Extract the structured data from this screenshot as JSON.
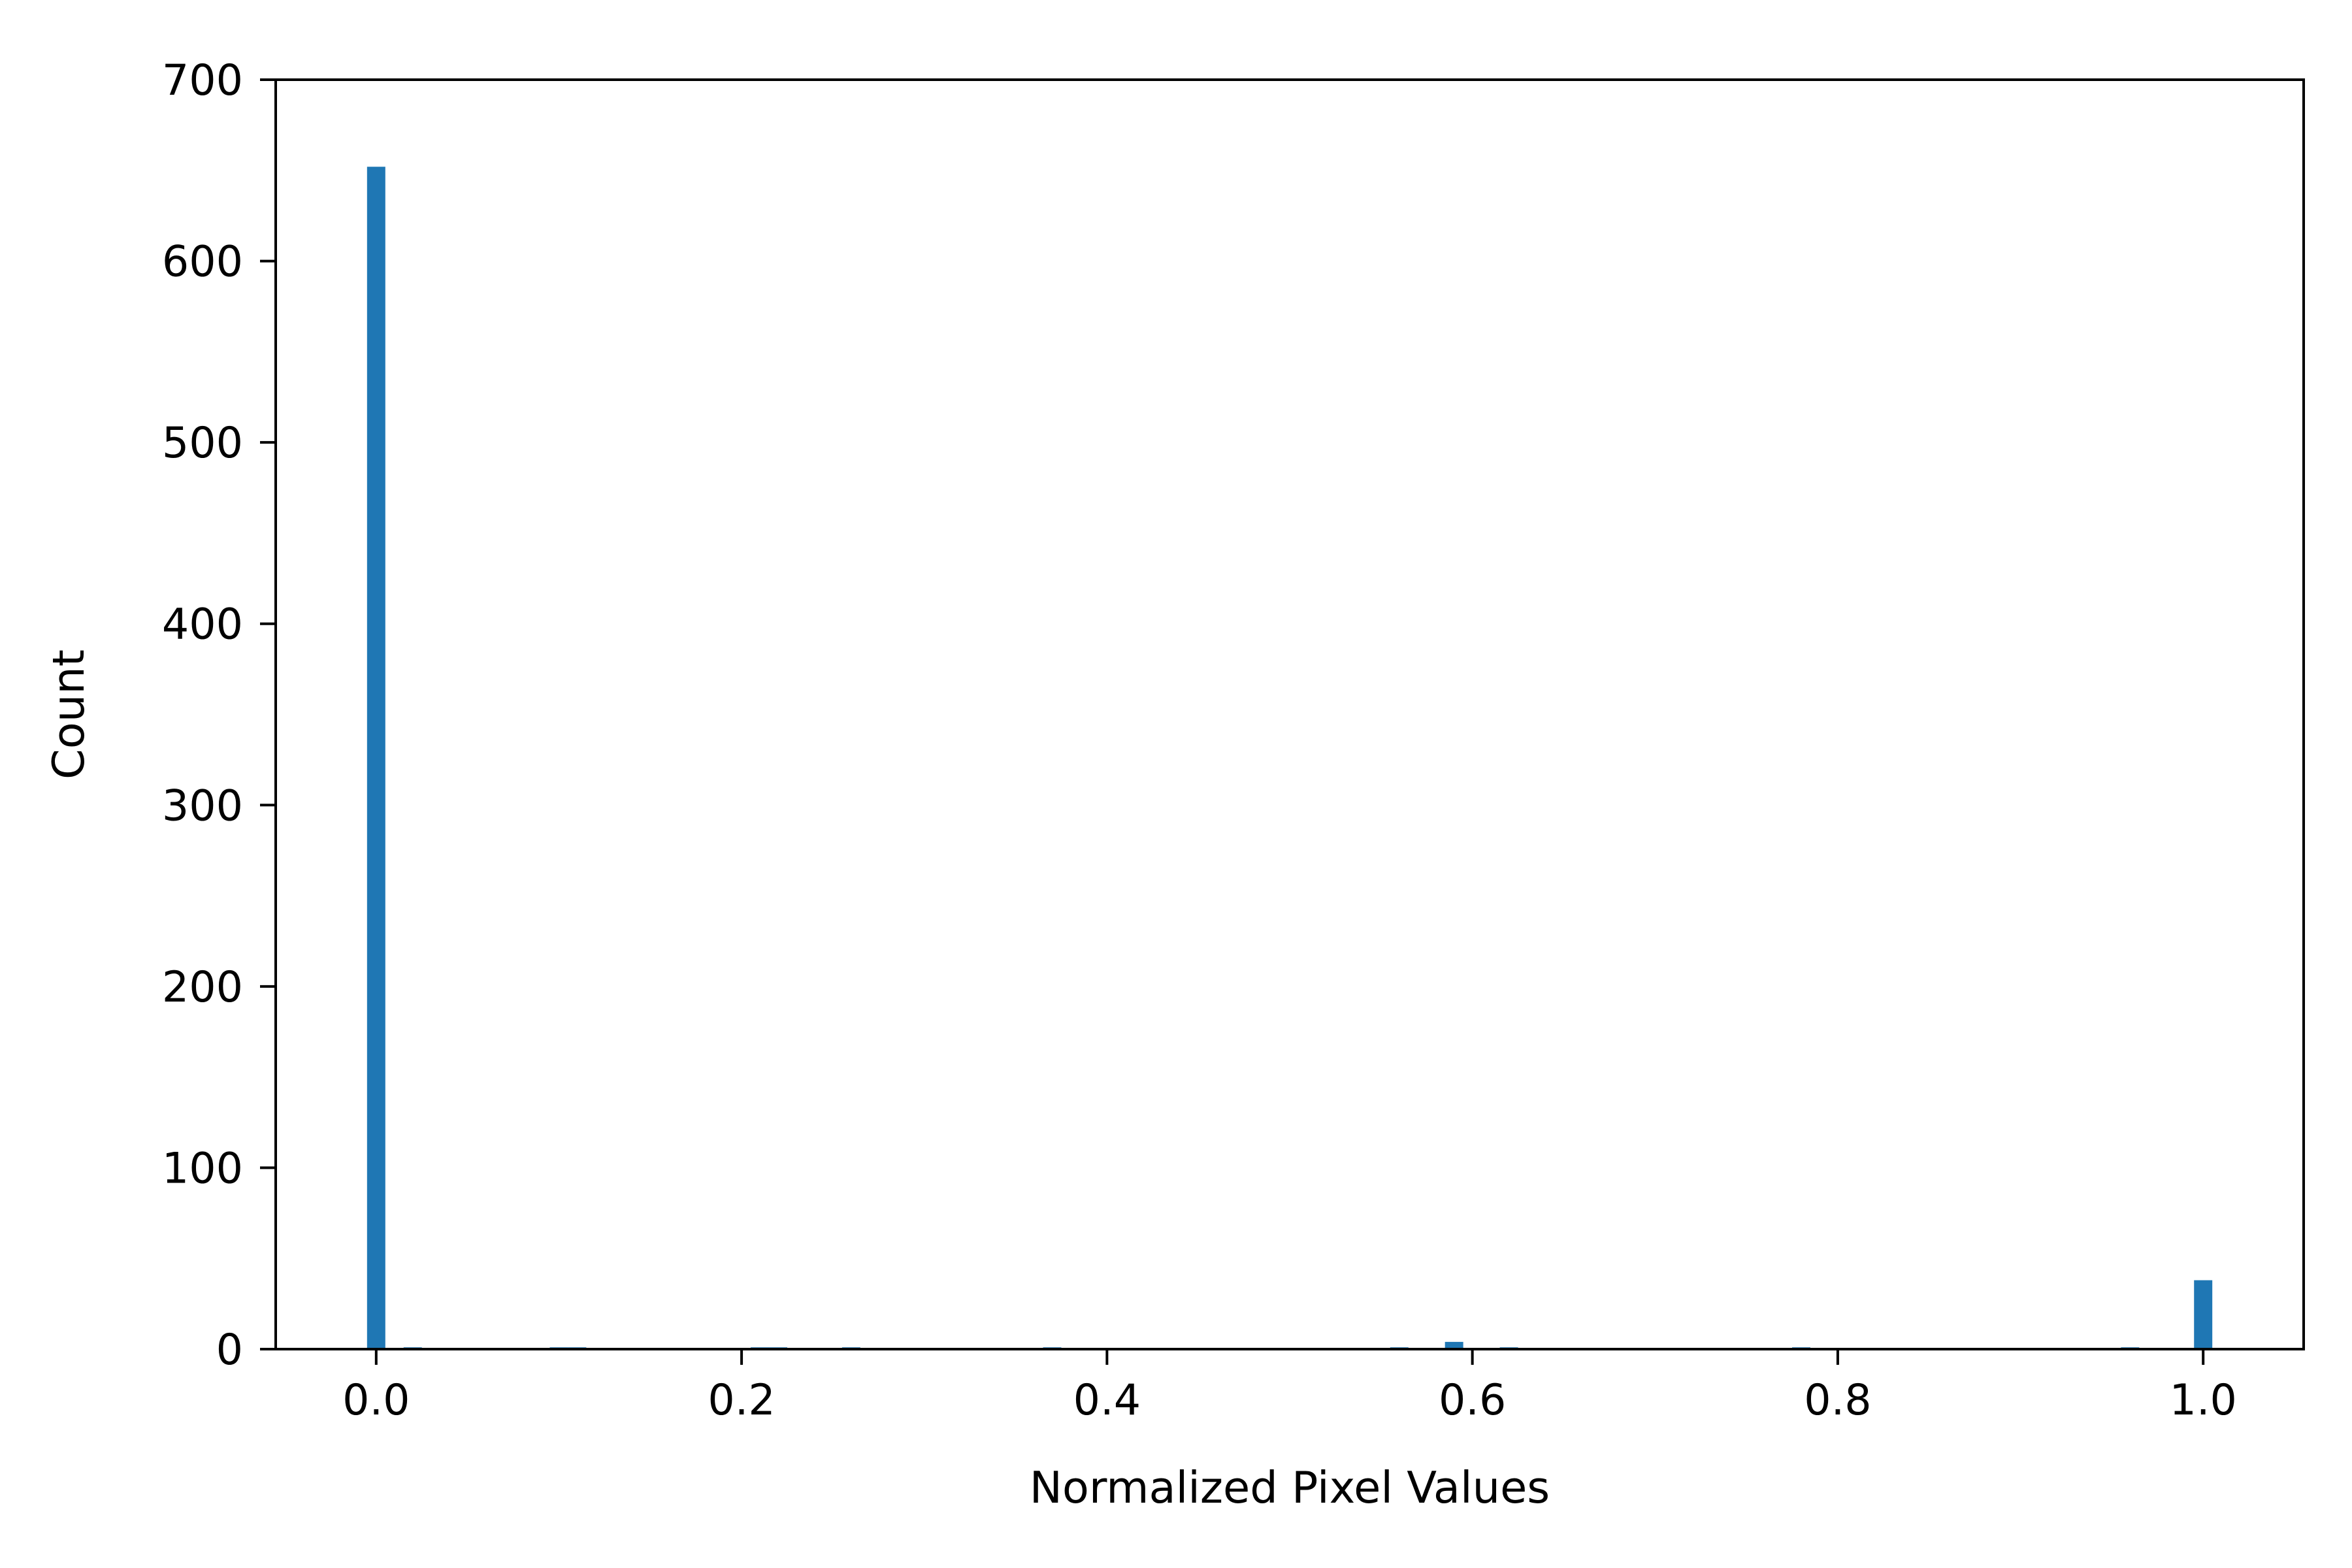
{
  "chart_data": {
    "type": "bar",
    "title": "",
    "xlabel": "Normalized Pixel Values",
    "ylabel": "Count",
    "xlim": [
      -0.055,
      1.055
    ],
    "ylim": [
      0,
      700
    ],
    "xticks": [
      0.0,
      0.2,
      0.4,
      0.6,
      0.8,
      1.0
    ],
    "xtick_labels": [
      "0.0",
      "0.2",
      "0.4",
      "0.6",
      "0.8",
      "1.0"
    ],
    "yticks": [
      0,
      100,
      200,
      300,
      400,
      500,
      600,
      700
    ],
    "ytick_labels": [
      "0",
      "100",
      "200",
      "300",
      "400",
      "500",
      "600",
      "700"
    ],
    "bin_width": 0.01,
    "bars": [
      {
        "x": 0.0,
        "value": 652
      },
      {
        "x": 0.02,
        "value": 1
      },
      {
        "x": 0.1,
        "value": 1
      },
      {
        "x": 0.11,
        "value": 1
      },
      {
        "x": 0.21,
        "value": 1
      },
      {
        "x": 0.22,
        "value": 1
      },
      {
        "x": 0.26,
        "value": 1
      },
      {
        "x": 0.37,
        "value": 1
      },
      {
        "x": 0.56,
        "value": 1
      },
      {
        "x": 0.59,
        "value": 4
      },
      {
        "x": 0.62,
        "value": 1
      },
      {
        "x": 0.78,
        "value": 1
      },
      {
        "x": 0.96,
        "value": 1
      },
      {
        "x": 1.0,
        "value": 38
      }
    ],
    "grid": false,
    "bar_color": "#1f77b4"
  }
}
